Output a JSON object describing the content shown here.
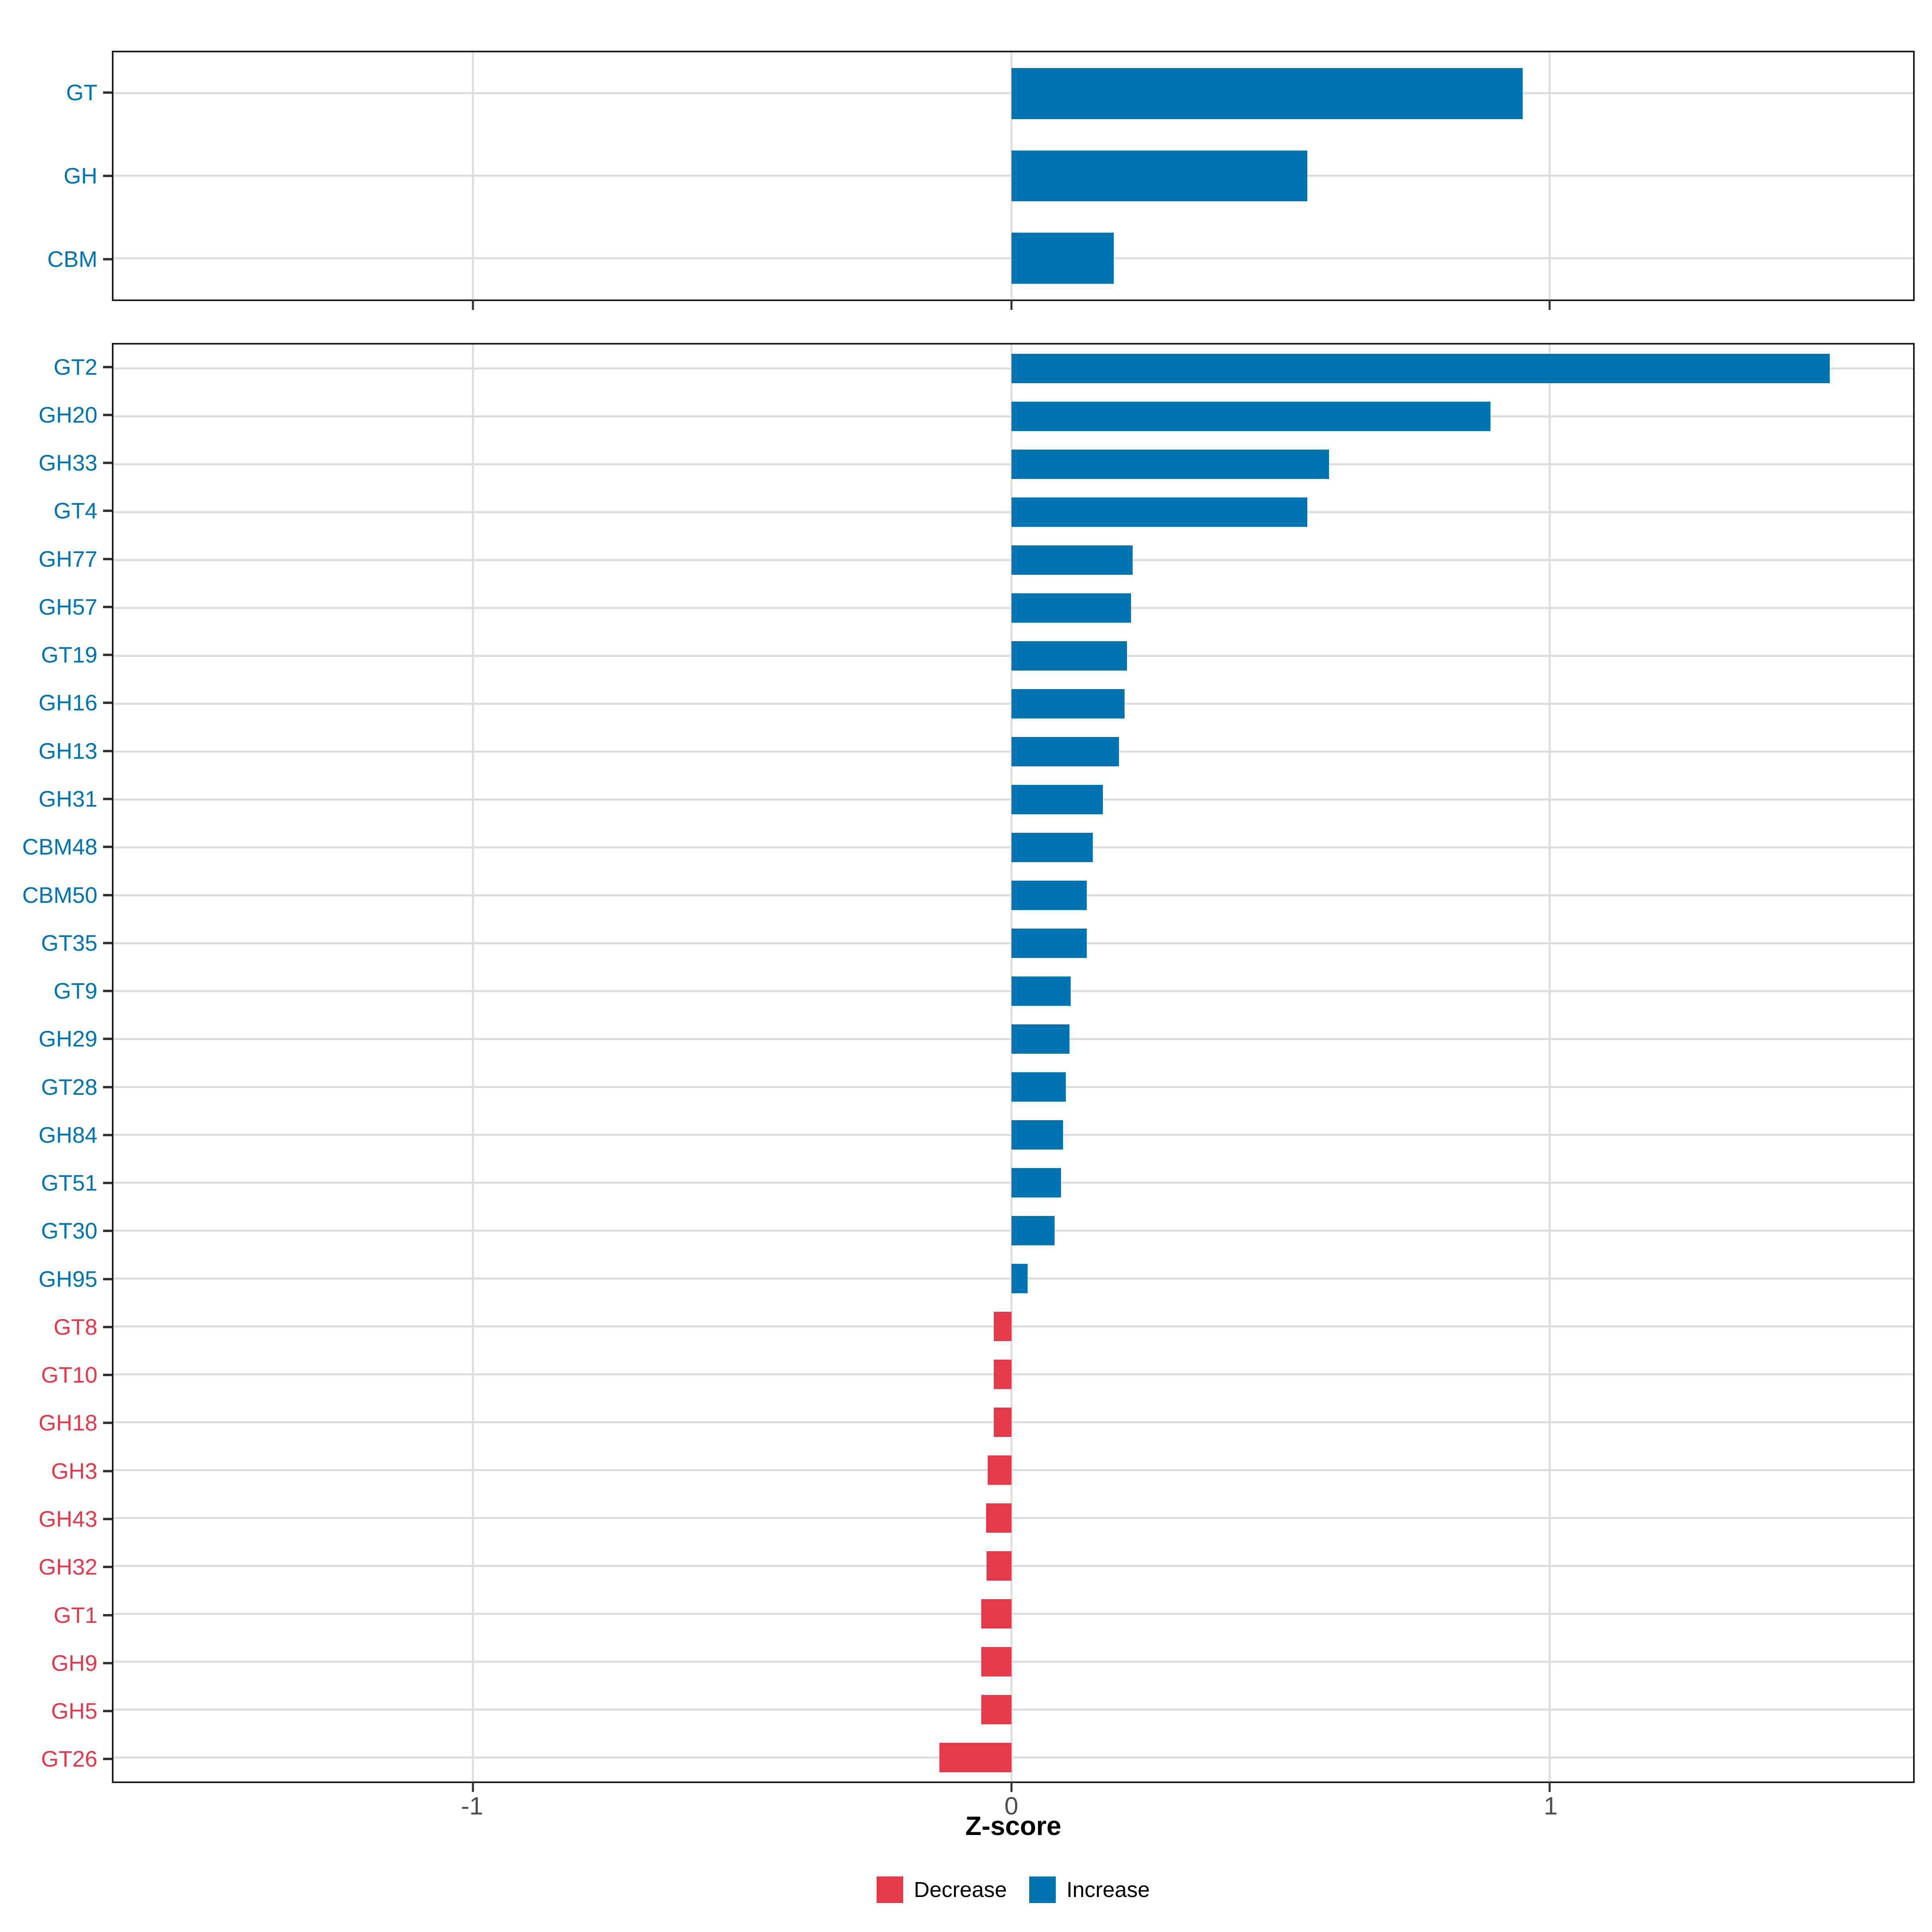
{
  "colors": {
    "increase": "#0073B2",
    "decrease": "#E53848",
    "gridline": "#DDDDDD",
    "axis_border": "#1A1A1A",
    "tick_label": "#4D4D4D",
    "tick_mark": "#333333"
  },
  "axis": {
    "xlabel": "Z-score",
    "ticks": [
      -1,
      0,
      1
    ],
    "tick_labels": [
      "-1",
      "0",
      "1"
    ],
    "xlim": [
      -1.668,
      1.675
    ]
  },
  "legend": [
    {
      "label": "Decrease",
      "color": "#E53848"
    },
    {
      "label": "Increase",
      "color": "#0073B2"
    }
  ],
  "chart_data": {
    "type": "bar",
    "orientation": "horizontal",
    "xlabel": "Z-score",
    "xlim": [
      -1.668,
      1.675
    ],
    "x_ticks": [
      -1,
      0,
      1
    ],
    "grid": "on",
    "legend_position": "bottom",
    "panels": [
      {
        "id": "category",
        "categories": [
          "GT",
          "GH",
          "CBM"
        ],
        "values": [
          0.95,
          0.55,
          0.19
        ]
      },
      {
        "id": "family",
        "categories": [
          "GT2",
          "GH20",
          "GH33",
          "GT4",
          "GH77",
          "GH57",
          "GT19",
          "GH16",
          "GH13",
          "GH31",
          "CBM48",
          "CBM50",
          "GT35",
          "GT9",
          "GH29",
          "GT28",
          "GH84",
          "GT51",
          "GT30",
          "GH95",
          "GT8",
          "GT10",
          "GH18",
          "GH3",
          "GH43",
          "GH32",
          "GT1",
          "GH9",
          "GH5",
          "GT26"
        ],
        "values": [
          1.52,
          0.89,
          0.59,
          0.55,
          0.225,
          0.222,
          0.215,
          0.21,
          0.2,
          0.17,
          0.151,
          0.14,
          0.14,
          0.11,
          0.108,
          0.101,
          0.096,
          0.092,
          0.08,
          0.03,
          -0.033,
          -0.033,
          -0.033,
          -0.044,
          -0.047,
          -0.046,
          -0.056,
          -0.056,
          -0.056,
          -0.134
        ]
      }
    ]
  }
}
